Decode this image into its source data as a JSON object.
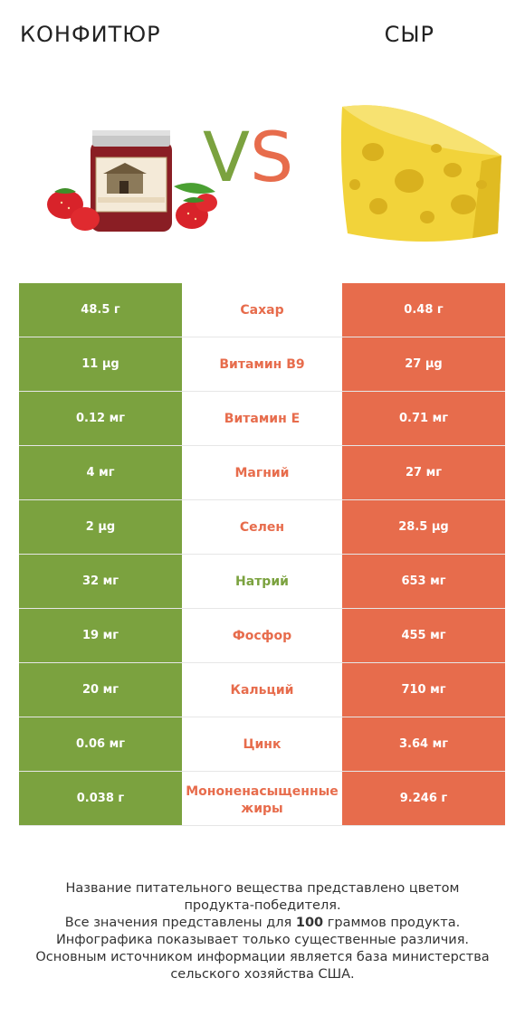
{
  "header": {
    "left_title": "КОНФИТЮР",
    "right_title": "СЫР",
    "vs_v": "V",
    "vs_s": "S"
  },
  "images": {
    "left": "jam-jar-with-strawberries",
    "right": "cheese-wedge"
  },
  "colors": {
    "left_accent": "#7ba23f",
    "right_accent": "#e76c4c"
  },
  "rows": [
    {
      "left": "48.5 г",
      "name": "Сахар",
      "right": "0.48 г",
      "winner": "right"
    },
    {
      "left": "11 µg",
      "name": "Витамин B9",
      "right": "27 µg",
      "winner": "right"
    },
    {
      "left": "0.12 мг",
      "name": "Витамин E",
      "right": "0.71 мг",
      "winner": "right"
    },
    {
      "left": "4 мг",
      "name": "Магний",
      "right": "27 мг",
      "winner": "right"
    },
    {
      "left": "2 µg",
      "name": "Селен",
      "right": "28.5 µg",
      "winner": "right"
    },
    {
      "left": "32 мг",
      "name": "Натрий",
      "right": "653 мг",
      "winner": "left"
    },
    {
      "left": "19 мг",
      "name": "Фосфор",
      "right": "455 мг",
      "winner": "right"
    },
    {
      "left": "20 мг",
      "name": "Кальций",
      "right": "710 мг",
      "winner": "right"
    },
    {
      "left": "0.06 мг",
      "name": "Цинк",
      "right": "3.64 мг",
      "winner": "right"
    },
    {
      "left": "0.038 г",
      "name": "Мононенасыщенные жиры",
      "right": "9.246 г",
      "winner": "right"
    }
  ],
  "footer": {
    "line1": "Название питательного вещества представлено цветом",
    "line2": "продукта-победителя.",
    "line3a": "Все значения представлены для ",
    "line3b": "100",
    "line3c": " граммов продукта.",
    "line4": "Инфографика показывает только существенные различия.",
    "line5": "Основным источником информации является база министерства",
    "line6": "сельского хозяйства США."
  }
}
